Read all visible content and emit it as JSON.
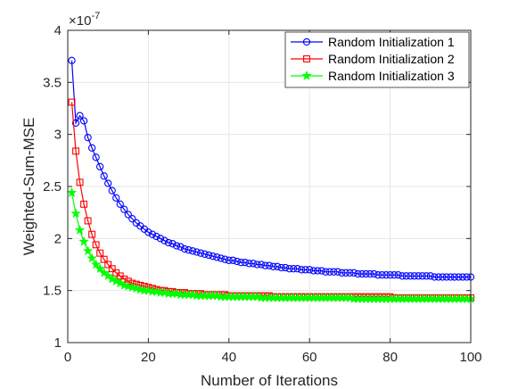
{
  "chart_data": {
    "type": "line",
    "title": "",
    "xlabel": "Number of Iterations",
    "ylabel": "Weighted-Sum-MSE",
    "y_exponent_label": "×10",
    "y_exponent_power": "-7",
    "xlim": [
      0,
      100
    ],
    "ylim": [
      1,
      4
    ],
    "x_ticks": [
      0,
      20,
      40,
      60,
      80,
      100
    ],
    "y_ticks": [
      1,
      1.5,
      2,
      2.5,
      3,
      3.5,
      4
    ],
    "x_tick_labels": [
      "0",
      "20",
      "40",
      "60",
      "80",
      "100"
    ],
    "y_tick_labels": [
      "1",
      "1.5",
      "2",
      "2.5",
      "3",
      "3.5",
      "4"
    ],
    "grid": true,
    "legend_position": "top-right",
    "x": [
      1,
      2,
      3,
      4,
      5,
      6,
      7,
      8,
      9,
      10,
      11,
      12,
      13,
      14,
      15,
      16,
      17,
      18,
      19,
      20,
      21,
      22,
      23,
      24,
      25,
      26,
      27,
      28,
      29,
      30,
      31,
      32,
      33,
      34,
      35,
      36,
      37,
      38,
      39,
      40,
      41,
      42,
      43,
      44,
      45,
      46,
      47,
      48,
      49,
      50,
      51,
      52,
      53,
      54,
      55,
      56,
      57,
      58,
      59,
      60,
      61,
      62,
      63,
      64,
      65,
      66,
      67,
      68,
      69,
      70,
      71,
      72,
      73,
      74,
      75,
      76,
      77,
      78,
      79,
      80,
      81,
      82,
      83,
      84,
      85,
      86,
      87,
      88,
      89,
      90,
      91,
      92,
      93,
      94,
      95,
      96,
      97,
      98,
      99,
      100
    ],
    "series": [
      {
        "name": "Random Initialization 1",
        "color": "#0000ff",
        "marker": "circle",
        "values": [
          3.71,
          3.11,
          3.18,
          3.13,
          2.97,
          2.87,
          2.78,
          2.69,
          2.6,
          2.53,
          2.46,
          2.39,
          2.33,
          2.28,
          2.23,
          2.19,
          2.15,
          2.12,
          2.09,
          2.06,
          2.04,
          2.02,
          2.0,
          1.98,
          1.96,
          1.95,
          1.93,
          1.92,
          1.9,
          1.89,
          1.88,
          1.87,
          1.86,
          1.85,
          1.84,
          1.83,
          1.82,
          1.81,
          1.8,
          1.79,
          1.79,
          1.78,
          1.77,
          1.77,
          1.76,
          1.76,
          1.75,
          1.75,
          1.74,
          1.74,
          1.73,
          1.73,
          1.72,
          1.72,
          1.71,
          1.71,
          1.71,
          1.7,
          1.7,
          1.7,
          1.69,
          1.69,
          1.69,
          1.68,
          1.68,
          1.68,
          1.68,
          1.67,
          1.67,
          1.67,
          1.67,
          1.66,
          1.66,
          1.66,
          1.66,
          1.66,
          1.65,
          1.65,
          1.65,
          1.65,
          1.65,
          1.65,
          1.64,
          1.64,
          1.64,
          1.64,
          1.64,
          1.64,
          1.64,
          1.64,
          1.63,
          1.63,
          1.63,
          1.63,
          1.63,
          1.63,
          1.63,
          1.63,
          1.63,
          1.63
        ]
      },
      {
        "name": "Random Initialization 2",
        "color": "#ff0000",
        "marker": "square",
        "values": [
          3.31,
          2.84,
          2.54,
          2.33,
          2.17,
          2.04,
          1.94,
          1.86,
          1.8,
          1.75,
          1.71,
          1.67,
          1.64,
          1.61,
          1.59,
          1.57,
          1.56,
          1.55,
          1.54,
          1.53,
          1.52,
          1.51,
          1.5,
          1.5,
          1.49,
          1.49,
          1.48,
          1.48,
          1.48,
          1.47,
          1.47,
          1.47,
          1.47,
          1.46,
          1.46,
          1.46,
          1.46,
          1.46,
          1.46,
          1.45,
          1.45,
          1.45,
          1.45,
          1.45,
          1.45,
          1.45,
          1.45,
          1.45,
          1.45,
          1.45,
          1.44,
          1.44,
          1.44,
          1.44,
          1.44,
          1.44,
          1.44,
          1.44,
          1.44,
          1.44,
          1.44,
          1.44,
          1.44,
          1.44,
          1.44,
          1.44,
          1.44,
          1.44,
          1.44,
          1.44,
          1.44,
          1.44,
          1.44,
          1.44,
          1.44,
          1.44,
          1.44,
          1.44,
          1.44,
          1.44,
          1.43,
          1.43,
          1.43,
          1.43,
          1.43,
          1.43,
          1.43,
          1.43,
          1.43,
          1.43,
          1.43,
          1.43,
          1.43,
          1.43,
          1.43,
          1.43,
          1.43,
          1.43,
          1.43,
          1.43
        ]
      },
      {
        "name": "Random Initialization 3",
        "color": "#00ff00",
        "marker": "star",
        "values": [
          2.44,
          2.24,
          2.08,
          1.97,
          1.88,
          1.81,
          1.75,
          1.71,
          1.67,
          1.64,
          1.61,
          1.59,
          1.57,
          1.55,
          1.54,
          1.53,
          1.52,
          1.51,
          1.5,
          1.5,
          1.49,
          1.49,
          1.48,
          1.48,
          1.47,
          1.47,
          1.47,
          1.46,
          1.46,
          1.46,
          1.46,
          1.45,
          1.45,
          1.45,
          1.45,
          1.45,
          1.45,
          1.44,
          1.44,
          1.44,
          1.44,
          1.44,
          1.44,
          1.44,
          1.44,
          1.44,
          1.44,
          1.43,
          1.43,
          1.43,
          1.43,
          1.43,
          1.43,
          1.43,
          1.43,
          1.43,
          1.43,
          1.43,
          1.43,
          1.43,
          1.43,
          1.43,
          1.43,
          1.43,
          1.43,
          1.43,
          1.43,
          1.43,
          1.43,
          1.43,
          1.42,
          1.42,
          1.42,
          1.42,
          1.42,
          1.42,
          1.42,
          1.42,
          1.42,
          1.42,
          1.42,
          1.42,
          1.42,
          1.42,
          1.42,
          1.42,
          1.42,
          1.42,
          1.42,
          1.42,
          1.42,
          1.42,
          1.42,
          1.42,
          1.42,
          1.42,
          1.42,
          1.42,
          1.42,
          1.42
        ]
      }
    ]
  }
}
